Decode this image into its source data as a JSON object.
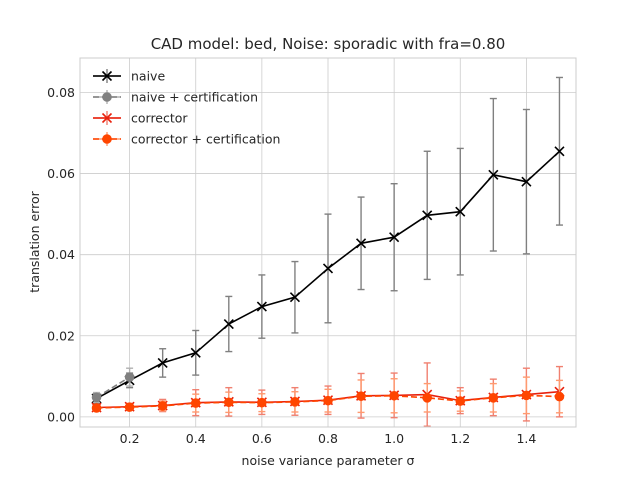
{
  "chart_data": {
    "type": "line",
    "title": "CAD model: bed, Noise: sporadic with fra=0.80",
    "xlabel": "noise variance parameter σ",
    "ylabel": "translation error",
    "xlim": [
      0.05,
      1.55
    ],
    "ylim": [
      -0.0025,
      0.0885
    ],
    "x_ticks": [
      0.2,
      0.4,
      0.6,
      0.8,
      1.0,
      1.2,
      1.4
    ],
    "x_tick_labels": [
      "0.2",
      "0.4",
      "0.6",
      "0.8",
      "1.0",
      "1.2",
      "1.4"
    ],
    "y_ticks": [
      0.0,
      0.02,
      0.04,
      0.06,
      0.08
    ],
    "y_tick_labels": [
      "0.00",
      "0.02",
      "0.04",
      "0.06",
      "0.08"
    ],
    "grid": true,
    "legend_position": "top-left",
    "series": [
      {
        "name": "naive",
        "color": "#000000",
        "error_color": "#808080",
        "marker": "x",
        "dashed": false,
        "x": [
          0.1,
          0.2,
          0.3,
          0.4,
          0.5,
          0.6,
          0.7,
          0.8,
          0.9,
          1.0,
          1.1,
          1.2,
          1.3,
          1.4,
          1.5
        ],
        "y": [
          0.0045,
          0.009,
          0.0133,
          0.0158,
          0.0229,
          0.0272,
          0.0295,
          0.0366,
          0.0428,
          0.0443,
          0.0497,
          0.0506,
          0.0597,
          0.058,
          0.0655
        ],
        "err": [
          0.0012,
          0.0018,
          0.0035,
          0.0055,
          0.0068,
          0.0078,
          0.0088,
          0.0134,
          0.0114,
          0.0132,
          0.0158,
          0.0156,
          0.0188,
          0.0178,
          0.0182
        ]
      },
      {
        "name": "naive + certification",
        "color": "#808080",
        "error_color": "#b0b0b0",
        "marker": "o",
        "dashed": true,
        "x": [
          0.1,
          0.2
        ],
        "y": [
          0.0048,
          0.0098
        ],
        "err": [
          0.0012,
          0.0022
        ]
      },
      {
        "name": "corrector",
        "color": "#e8210d",
        "error_color": "#f08070",
        "marker": "x",
        "dashed": false,
        "x": [
          0.1,
          0.2,
          0.3,
          0.4,
          0.5,
          0.6,
          0.7,
          0.8,
          0.9,
          1.0,
          1.1,
          1.2,
          1.3,
          1.4,
          1.5
        ],
        "y": [
          0.0023,
          0.0025,
          0.0028,
          0.0035,
          0.0037,
          0.0036,
          0.0038,
          0.0041,
          0.0052,
          0.0053,
          0.0055,
          0.004,
          0.0048,
          0.0055,
          0.0062
        ],
        "err": [
          0.0005,
          0.0008,
          0.0015,
          0.0032,
          0.0035,
          0.003,
          0.0034,
          0.0035,
          0.0055,
          0.0055,
          0.0078,
          0.0032,
          0.0045,
          0.0065,
          0.0062
        ]
      },
      {
        "name": "corrector + certification",
        "color": "#ff4500",
        "error_color": "#ff9a70",
        "marker": "o",
        "dashed": true,
        "x": [
          0.1,
          0.2,
          0.3,
          0.4,
          0.5,
          0.6,
          0.7,
          0.8,
          0.9,
          1.0,
          1.1,
          1.2,
          1.3,
          1.4,
          1.5
        ],
        "y": [
          0.0022,
          0.0024,
          0.0027,
          0.0034,
          0.0036,
          0.0035,
          0.0037,
          0.004,
          0.0051,
          0.0052,
          0.0047,
          0.0039,
          0.0047,
          0.0053,
          0.005
        ],
        "err": [
          0.0004,
          0.0007,
          0.0012,
          0.0022,
          0.0025,
          0.0022,
          0.0025,
          0.0028,
          0.004,
          0.0042,
          0.0035,
          0.0025,
          0.0035,
          0.0045,
          0.004
        ]
      }
    ]
  }
}
